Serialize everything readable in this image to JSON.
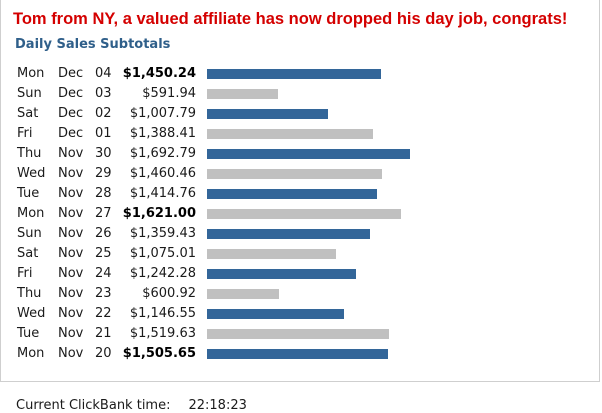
{
  "headline": "Tom from NY, a valued affiliate has now dropped his day job, congrats!",
  "subtitle": "Daily Sales Subtotals",
  "colors": {
    "headline": "#d40000",
    "subtitle": "#2f5f8a",
    "bar_dark": "#336699",
    "bar_light": "#c0c0c0"
  },
  "sales_max": 1692.79,
  "rows": [
    {
      "day": "Mon",
      "month": "Dec",
      "date": "04",
      "amount": "$1,450.24",
      "value": 1450.24,
      "bold": true,
      "shade": "dark"
    },
    {
      "day": "Sun",
      "month": "Dec",
      "date": "03",
      "amount": "$591.94",
      "value": 591.94,
      "bold": false,
      "shade": "light"
    },
    {
      "day": "Sat",
      "month": "Dec",
      "date": "02",
      "amount": "$1,007.79",
      "value": 1007.79,
      "bold": false,
      "shade": "dark"
    },
    {
      "day": "Fri",
      "month": "Dec",
      "date": "01",
      "amount": "$1,388.41",
      "value": 1388.41,
      "bold": false,
      "shade": "light"
    },
    {
      "day": "Thu",
      "month": "Nov",
      "date": "30",
      "amount": "$1,692.79",
      "value": 1692.79,
      "bold": false,
      "shade": "dark"
    },
    {
      "day": "Wed",
      "month": "Nov",
      "date": "29",
      "amount": "$1,460.46",
      "value": 1460.46,
      "bold": false,
      "shade": "light"
    },
    {
      "day": "Tue",
      "month": "Nov",
      "date": "28",
      "amount": "$1,414.76",
      "value": 1414.76,
      "bold": false,
      "shade": "dark"
    },
    {
      "day": "Mon",
      "month": "Nov",
      "date": "27",
      "amount": "$1,621.00",
      "value": 1621.0,
      "bold": true,
      "shade": "light"
    },
    {
      "day": "Sun",
      "month": "Nov",
      "date": "26",
      "amount": "$1,359.43",
      "value": 1359.43,
      "bold": false,
      "shade": "dark"
    },
    {
      "day": "Sat",
      "month": "Nov",
      "date": "25",
      "amount": "$1,075.01",
      "value": 1075.01,
      "bold": false,
      "shade": "light"
    },
    {
      "day": "Fri",
      "month": "Nov",
      "date": "24",
      "amount": "$1,242.28",
      "value": 1242.28,
      "bold": false,
      "shade": "dark"
    },
    {
      "day": "Thu",
      "month": "Nov",
      "date": "23",
      "amount": "$600.92",
      "value": 600.92,
      "bold": false,
      "shade": "light"
    },
    {
      "day": "Wed",
      "month": "Nov",
      "date": "22",
      "amount": "$1,146.55",
      "value": 1146.55,
      "bold": false,
      "shade": "dark"
    },
    {
      "day": "Tue",
      "month": "Nov",
      "date": "21",
      "amount": "$1,519.63",
      "value": 1519.63,
      "bold": false,
      "shade": "light"
    },
    {
      "day": "Mon",
      "month": "Nov",
      "date": "20",
      "amount": "$1,505.65",
      "value": 1505.65,
      "bold": true,
      "shade": "dark"
    }
  ],
  "footer": {
    "label": "Current ClickBank time:",
    "time": "22:18:23"
  }
}
